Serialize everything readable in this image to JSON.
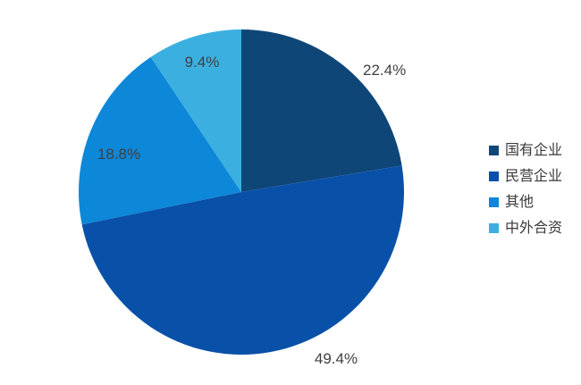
{
  "page": {
    "background_color": "#ffffff"
  },
  "chart_data": {
    "type": "pie",
    "title": "",
    "legend_position": "right",
    "start_angle_deg": 0,
    "direction": "clockwise",
    "label_color": "#404040",
    "legend_text_color": "#3a3a3a",
    "series": [
      {
        "name": "国有企业",
        "value": 22.4,
        "label": "22.4%",
        "color": "#0e4678"
      },
      {
        "name": "民营企业",
        "value": 49.4,
        "label": "49.4%",
        "color": "#0951a8"
      },
      {
        "name": "其他",
        "value": 18.8,
        "label": "18.8%",
        "color": "#0d87d8"
      },
      {
        "name": "中外合资",
        "value": 9.4,
        "label": "9.4%",
        "color": "#3bb0e0"
      }
    ]
  }
}
